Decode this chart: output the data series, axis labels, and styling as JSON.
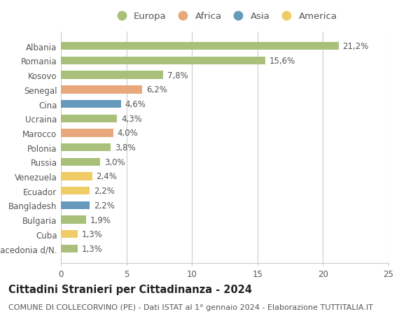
{
  "countries": [
    "Albania",
    "Romania",
    "Kosovo",
    "Senegal",
    "Cina",
    "Ucraina",
    "Marocco",
    "Polonia",
    "Russia",
    "Venezuela",
    "Ecuador",
    "Bangladesh",
    "Bulgaria",
    "Cuba",
    "Macedonia d/N."
  ],
  "values": [
    21.2,
    15.6,
    7.8,
    6.2,
    4.6,
    4.3,
    4.0,
    3.8,
    3.0,
    2.4,
    2.2,
    2.2,
    1.9,
    1.3,
    1.3
  ],
  "labels": [
    "21,2%",
    "15,6%",
    "7,8%",
    "6,2%",
    "4,6%",
    "4,3%",
    "4,0%",
    "3,8%",
    "3,0%",
    "2,4%",
    "2,2%",
    "2,2%",
    "1,9%",
    "1,3%",
    "1,3%"
  ],
  "continents": [
    "Europa",
    "Europa",
    "Europa",
    "Africa",
    "Asia",
    "Europa",
    "Africa",
    "Europa",
    "Europa",
    "America",
    "America",
    "Asia",
    "Europa",
    "America",
    "Europa"
  ],
  "continent_colors": {
    "Europa": "#a8c07a",
    "Africa": "#e8a87c",
    "Asia": "#6699bb",
    "America": "#f0cc66"
  },
  "legend_order": [
    "Europa",
    "Africa",
    "Asia",
    "America"
  ],
  "xlim": [
    0,
    25
  ],
  "xticks": [
    0,
    5,
    10,
    15,
    20,
    25
  ],
  "title": "Cittadini Stranieri per Cittadinanza - 2024",
  "subtitle": "COMUNE DI COLLECORVINO (PE) - Dati ISTAT al 1° gennaio 2024 - Elaborazione TUTTITALIA.IT",
  "background_color": "#ffffff",
  "grid_color": "#cccccc",
  "bar_height": 0.55,
  "title_fontsize": 10.5,
  "subtitle_fontsize": 8,
  "label_fontsize": 8.5,
  "tick_fontsize": 8.5,
  "legend_fontsize": 9.5
}
